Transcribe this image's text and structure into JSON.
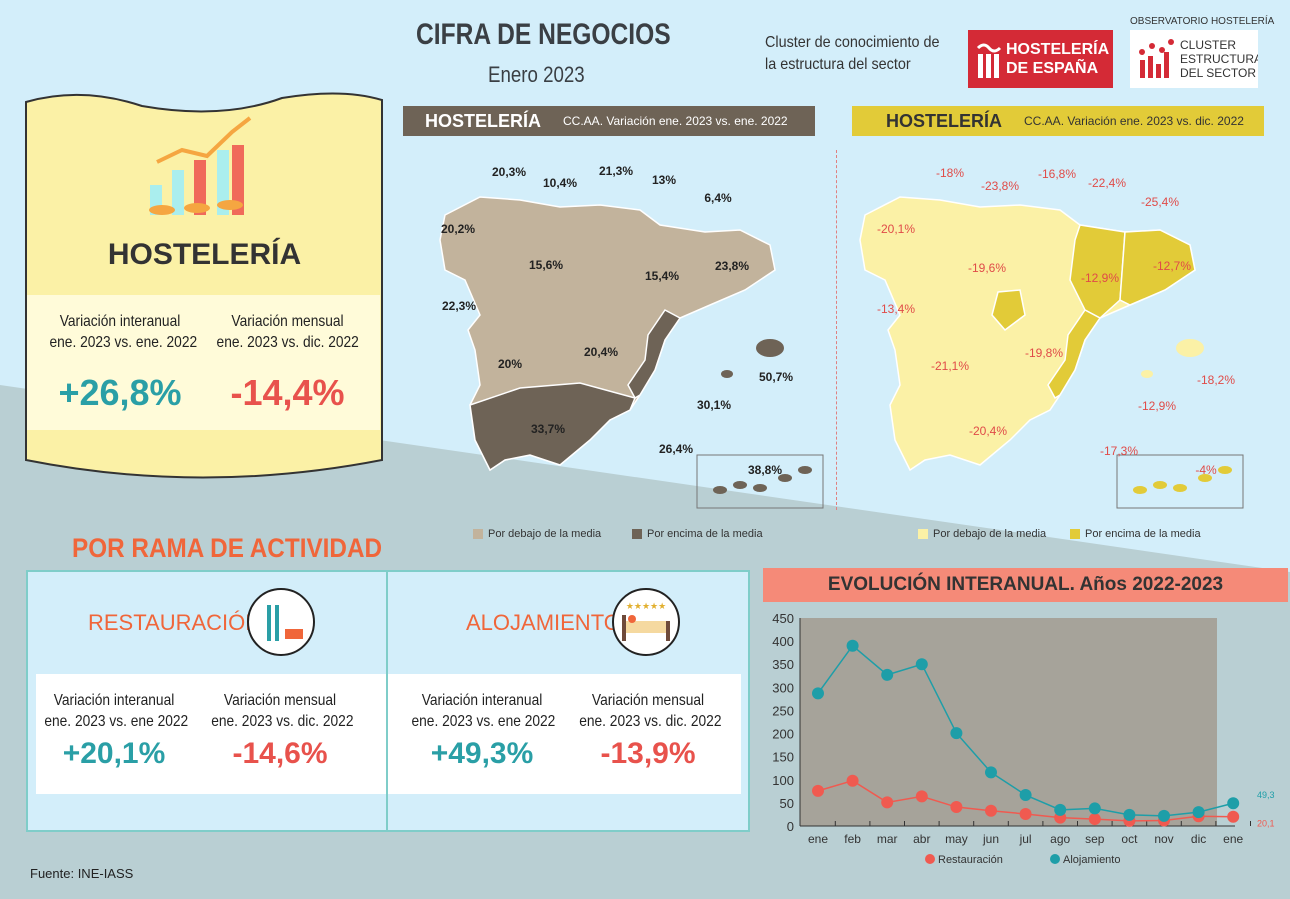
{
  "header": {
    "title": "CIFRA DE NEGOCIOS",
    "subtitle": "Enero 2023",
    "cluster_text_1": "Cluster de conocimiento de",
    "cluster_text_2": "la estructura del sector",
    "logo_hosteleria": "HOSTELERÍA DE ESPAÑA",
    "observatorio": "OBSERVATORIO HOSTELERÍA",
    "logo_cluster": "CLUSTER ESTRUCTURA DEL SECTOR"
  },
  "summary": {
    "title": "HOSTELERÍA",
    "interanual_label_1": "Variación interanual",
    "interanual_label_2": "ene. 2023 vs. ene. 2022",
    "interanual_value": "+26,8%",
    "mensual_label_1": "Variación mensual",
    "mensual_label_2": "ene. 2023 vs. dic. 2022",
    "mensual_value": "-14,4%"
  },
  "map_left": {
    "title": "HOSTELERÍA",
    "subtitle": "CC.AA. Variación ene. 2023 vs. ene. 2022",
    "labels": [
      "20,3%",
      "10,4%",
      "21,3%",
      "13%",
      "6,4%",
      "20,2%",
      "15,6%",
      "15,4%",
      "23,8%",
      "22,3%",
      "20%",
      "20,4%",
      "50,7%",
      "30,1%",
      "33,7%",
      "26,4%",
      "38,8%"
    ],
    "legend_below": "Por debajo de la media",
    "legend_above": "Por encima de la media",
    "color_below": "#c2b39c",
    "color_above": "#6e6356"
  },
  "map_right": {
    "title": "HOSTELERÍA",
    "subtitle": "CC.AA. Variación ene. 2023 vs. dic. 2022",
    "labels": [
      "-18%",
      "-23,8%",
      "-16,8%",
      "-22,4%",
      "-25,4%",
      "-20,1%",
      "-19,6%",
      "-12,9%",
      "-12,7%",
      "-13,4%",
      "-21,1%",
      "-19,8%",
      "-18,2%",
      "-12,9%",
      "-20,4%",
      "-17,3%",
      "-4%"
    ],
    "legend_below": "Por debajo de la media",
    "legend_above": "Por encima de la media",
    "color_below": "#fbf1a6",
    "color_above": "#e2cb38"
  },
  "rama": {
    "title": "POR RAMA DE ACTIVIDAD",
    "restauracion": {
      "title": "RESTAURACIÓN",
      "interanual_label_1": "Variación interanual",
      "interanual_label_2": "ene. 2023 vs. ene 2022",
      "interanual_value": "+20,1%",
      "mensual_label_1": "Variación mensual",
      "mensual_label_2": "ene. 2023 vs. dic. 2022",
      "mensual_value": "-14,6%"
    },
    "alojamiento": {
      "title": "ALOJAMIENTO",
      "interanual_label_1": "Variación interanual",
      "interanual_label_2": "ene. 2023 vs. ene 2022",
      "interanual_value": "+49,3%",
      "mensual_label_1": "Variación mensual",
      "mensual_label_2": "ene. 2023 vs. dic. 2022",
      "mensual_value": "-13,9%"
    }
  },
  "source": "Fuente: INE-IASS",
  "chart_data": {
    "type": "line",
    "title": "EVOLUCIÓN INTERANUAL. Años 2022-2023",
    "categories": [
      "ene",
      "feb",
      "mar",
      "abr",
      "may",
      "jun",
      "jul",
      "ago",
      "sep",
      "oct",
      "nov",
      "dic",
      "ene"
    ],
    "ylim": [
      0,
      450
    ],
    "yticks": [
      0,
      50,
      100,
      150,
      200,
      250,
      300,
      350,
      400,
      450
    ],
    "grid": false,
    "legend": "bottom",
    "series": [
      {
        "name": "Restauración",
        "color": "#f05a50",
        "values": [
          76,
          98,
          51,
          64,
          41,
          33,
          26,
          18,
          15,
          11,
          12,
          21,
          20.1
        ],
        "end_label": "20,1"
      },
      {
        "name": "Alojamiento",
        "color": "#1e9ea8",
        "values": [
          287,
          390,
          327,
          350,
          201,
          116,
          67,
          35,
          38,
          24,
          22,
          30,
          49.3
        ],
        "end_label": "49,3"
      }
    ]
  }
}
